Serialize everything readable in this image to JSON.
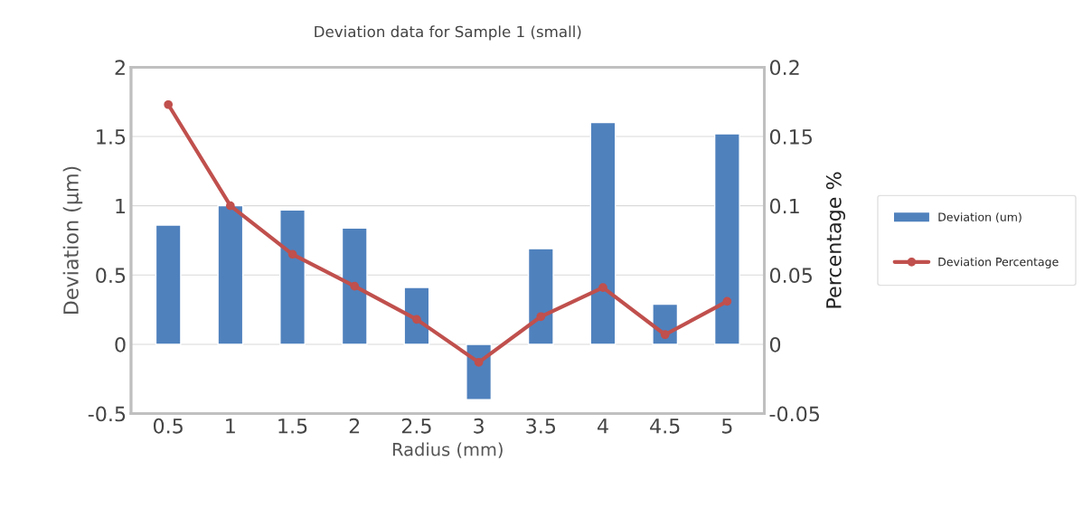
{
  "chart_data": {
    "type": "bar",
    "title": "Deviation data for Sample 1 (small)",
    "xlabel": "Radius (mm)",
    "ylabel": "Deviation (μm)",
    "y2label": "Percentage %",
    "categories": [
      "0.5",
      "1",
      "1.5",
      "2",
      "2.5",
      "3",
      "3.5",
      "4",
      "4.5",
      "5"
    ],
    "series": [
      {
        "name": "Deviation (um)",
        "color": "#4f81bd",
        "values": [
          0.86,
          1.0,
          0.97,
          0.84,
          0.41,
          -0.4,
          0.69,
          1.6,
          0.29,
          1.52
        ]
      },
      {
        "name": "Deviation Percentage",
        "type": "line",
        "axis": "y2",
        "color": "#c0504d",
        "marker": "circle",
        "line_style": "solid",
        "values": [
          0.173,
          0.1,
          0.065,
          0.042,
          0.018,
          -0.013,
          0.02,
          0.041,
          0.007,
          0.031
        ]
      }
    ],
    "ylim": [
      -0.5,
      2
    ],
    "yticks": [
      -0.5,
      0,
      0.5,
      1,
      1.5,
      2
    ],
    "y2lim": [
      -0.05,
      0.2
    ],
    "y2ticks": [
      -0.05,
      0,
      0.05,
      0.1,
      0.15,
      0.2
    ],
    "grid": "y",
    "legend": "right"
  }
}
